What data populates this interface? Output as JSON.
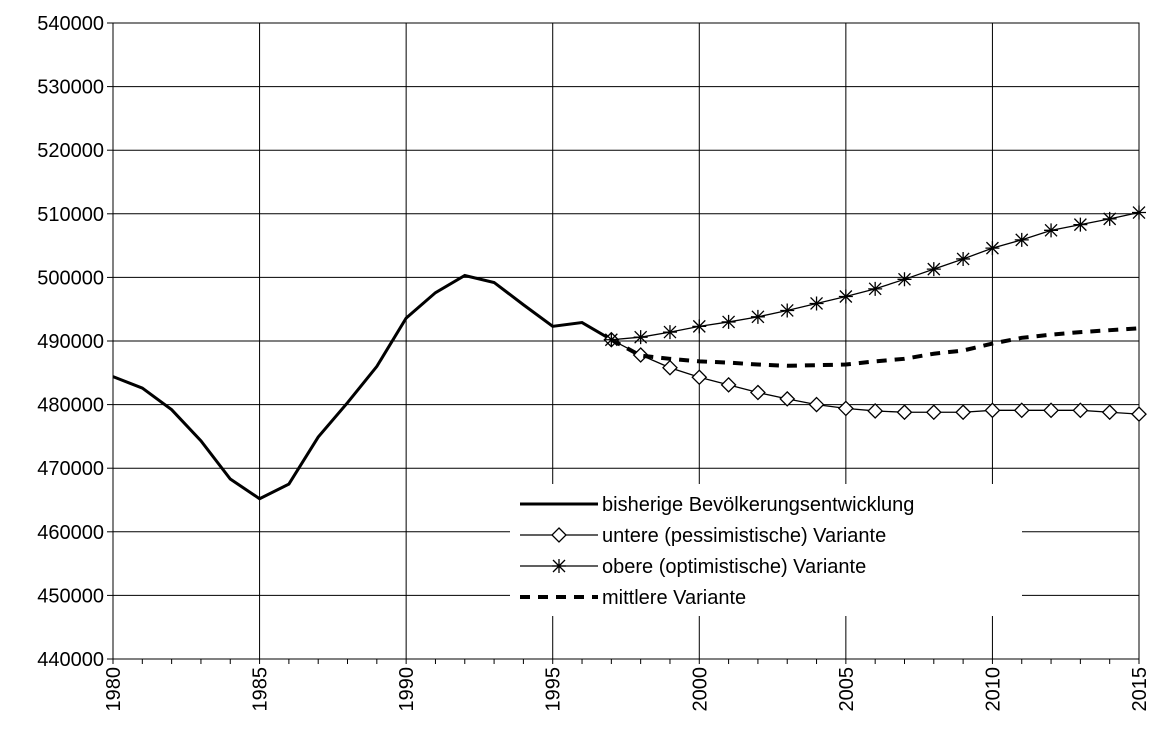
{
  "chart_data": {
    "type": "line",
    "x": [
      1980,
      1981,
      1982,
      1983,
      1984,
      1985,
      1986,
      1987,
      1988,
      1989,
      1990,
      1991,
      1992,
      1993,
      1994,
      1995,
      1996,
      1997,
      1998,
      1999,
      2000,
      2001,
      2002,
      2003,
      2004,
      2005,
      2006,
      2007,
      2008,
      2009,
      2010,
      2011,
      2012,
      2013,
      2014,
      2015
    ],
    "series": [
      {
        "name": "bisherige Bevölkerungsentwicklung",
        "color": "#000000",
        "marker": "none",
        "dash": false,
        "values": [
          484400,
          482600,
          479200,
          474300,
          468300,
          465200,
          467500,
          474900,
          480300,
          486000,
          493600,
          497600,
          500300,
          499200,
          495700,
          492300,
          492900,
          490200,
          null,
          null,
          null,
          null,
          null,
          null,
          null,
          null,
          null,
          null,
          null,
          null,
          null,
          null,
          null,
          null,
          null,
          null
        ]
      },
      {
        "name": "untere (pessimistische) Variante",
        "color": "#000000",
        "marker": "diamond",
        "dash": false,
        "values": [
          null,
          null,
          null,
          null,
          null,
          null,
          null,
          null,
          null,
          null,
          null,
          null,
          null,
          null,
          null,
          null,
          null,
          490200,
          487800,
          485800,
          484300,
          483100,
          481900,
          480900,
          480000,
          479400,
          479000,
          478800,
          478800,
          478800,
          479100,
          479100,
          479100,
          479100,
          478800,
          478500
        ]
      },
      {
        "name": "obere (optimistische) Variante",
        "color": "#000000",
        "marker": "star",
        "dash": false,
        "values": [
          null,
          null,
          null,
          null,
          null,
          null,
          null,
          null,
          null,
          null,
          null,
          null,
          null,
          null,
          null,
          null,
          null,
          490200,
          490600,
          491400,
          492300,
          493000,
          493800,
          494800,
          495900,
          497000,
          498200,
          499700,
          501300,
          502900,
          504600,
          505900,
          507400,
          508300,
          509200,
          510200
        ]
      },
      {
        "name": "mittlere Variante",
        "color": "#000000",
        "marker": "none",
        "dash": true,
        "values": [
          null,
          null,
          null,
          null,
          null,
          null,
          null,
          null,
          null,
          null,
          null,
          null,
          null,
          null,
          null,
          null,
          null,
          490200,
          487700,
          487200,
          486800,
          486600,
          486300,
          486100,
          486200,
          486300,
          486800,
          487200,
          488000,
          488500,
          489600,
          490500,
          491000,
          491400,
          491700,
          492000
        ]
      }
    ],
    "xlim": [
      1980,
      2015
    ],
    "xticks": [
      1980,
      1985,
      1990,
      1995,
      2000,
      2005,
      2010,
      2015
    ],
    "ylim": [
      440000,
      540000
    ],
    "yticks": [
      440000,
      450000,
      460000,
      470000,
      480000,
      490000,
      500000,
      510000,
      520000,
      530000,
      540000
    ],
    "grid": true,
    "legend": "lower right"
  }
}
